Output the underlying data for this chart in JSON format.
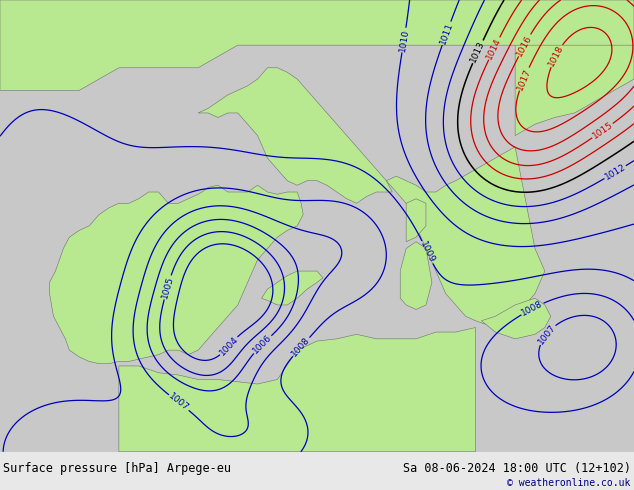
{
  "title_left": "Surface pressure [hPa] Arpege-eu",
  "title_right": "Sa 08-06-2024 18:00 UTC (12+102)",
  "copyright": "© weatheronline.co.uk",
  "bg_color": "#c8c8c8",
  "land_color": "#b8e890",
  "sea_color": "#c8c8c8",
  "footer_bg": "#e8e8e8",
  "contour_color_blue": "#0000bb",
  "contour_color_red": "#cc0000",
  "contour_color_black": "#000000",
  "label_fontsize": 6.5,
  "footer_fontsize": 8.5,
  "figsize": [
    6.34,
    4.9
  ],
  "dpi": 100,
  "lon_min": -12,
  "lon_max": 20,
  "lat_min": 32,
  "lat_max": 52
}
